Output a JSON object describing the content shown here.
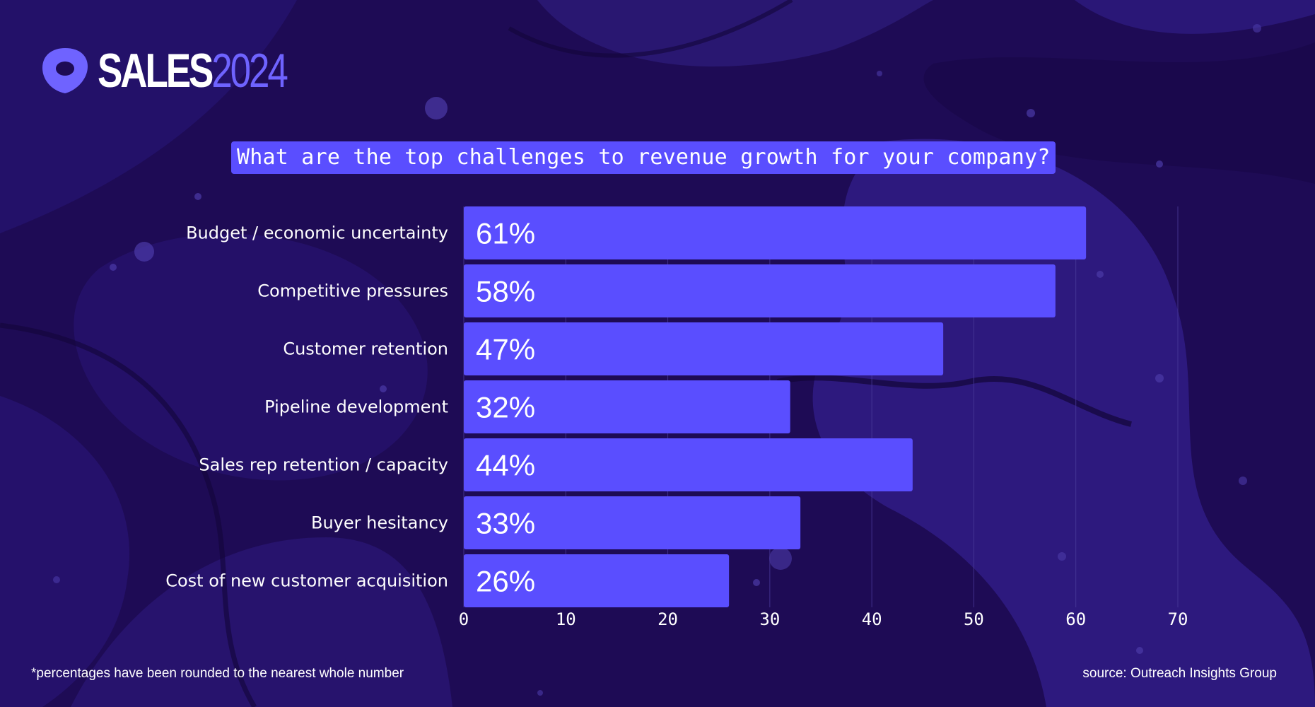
{
  "logo": {
    "word": "SALES",
    "year": "2024"
  },
  "footnote": "*percentages have been rounded to the nearest whole number",
  "source": "source: Outreach Insights Group",
  "colors": {
    "background": "#1e0b55",
    "bar": "#5a4eff",
    "accent": "#6f63ff"
  },
  "chart_data": {
    "type": "bar",
    "orientation": "horizontal",
    "title": "What are the top challenges to revenue growth for your company?",
    "categories": [
      "Budget / economic uncertainty",
      "Competitive pressures",
      "Customer retention",
      "Pipeline development",
      "Sales rep retention / capacity",
      "Buyer hesitancy",
      "Cost of new customer acquisition"
    ],
    "values": [
      61,
      58,
      47,
      32,
      44,
      33,
      26
    ],
    "data_labels": [
      "61%",
      "58%",
      "47%",
      "32%",
      "44%",
      "33%",
      "26%"
    ],
    "xlim": [
      0,
      70
    ],
    "xticks": [
      "0",
      "10",
      "20",
      "30",
      "40",
      "50",
      "60",
      "70"
    ],
    "grid": true
  }
}
